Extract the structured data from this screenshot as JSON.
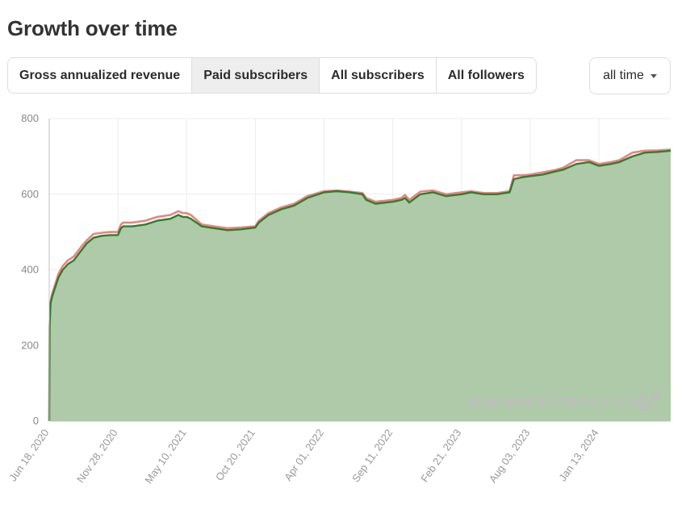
{
  "header": {
    "title": "Growth over time"
  },
  "tabs": [
    {
      "label": "Gross annualized revenue",
      "active": false
    },
    {
      "label": "Paid subscribers",
      "active": true
    },
    {
      "label": "All subscribers",
      "active": false
    },
    {
      "label": "All followers",
      "active": false
    }
  ],
  "range_select": {
    "value": "all time",
    "icon": "caret-down-icon"
  },
  "watermark": {
    "text": "WWW.WORCESTERSUCKS.EMAIL",
    "icon": "external-link-icon"
  },
  "colors": {
    "fill": "#aecaa8",
    "line": "#2e7d32",
    "secondary_line": "#e5877a",
    "grid": "#ececec"
  },
  "chart_data": {
    "type": "area",
    "title": "",
    "xlabel": "",
    "ylabel": "",
    "ylim": [
      0,
      800
    ],
    "yticks": [
      "0",
      "200",
      "400",
      "600",
      "800"
    ],
    "xticks": [
      "Jun 18, 2020",
      "Nov 28, 2020",
      "May 10, 2021",
      "Oct 20, 2021",
      "Apr 01, 2022",
      "Sep 11, 2022",
      "Feb 21, 2023",
      "Aug 03, 2023",
      "Jan 13, 2024"
    ],
    "grid": true,
    "x": [
      "2020-06-18",
      "2020-06-19",
      "2020-06-21",
      "2020-06-25",
      "2020-07-01",
      "2020-07-10",
      "2020-07-20",
      "2020-08-01",
      "2020-08-15",
      "2020-09-01",
      "2020-09-15",
      "2020-10-01",
      "2020-10-20",
      "2020-11-10",
      "2020-11-28",
      "2020-12-05",
      "2020-12-10",
      "2021-01-01",
      "2021-02-01",
      "2021-03-01",
      "2021-04-01",
      "2021-04-20",
      "2021-05-01",
      "2021-05-10",
      "2021-05-20",
      "2021-06-15",
      "2021-07-15",
      "2021-08-15",
      "2021-09-15",
      "2021-10-20",
      "2021-10-28",
      "2021-11-20",
      "2021-12-20",
      "2022-01-20",
      "2022-02-20",
      "2022-04-01",
      "2022-05-01",
      "2022-06-01",
      "2022-07-01",
      "2022-07-10",
      "2022-08-01",
      "2022-09-11",
      "2022-10-01",
      "2022-10-10",
      "2022-10-20",
      "2022-11-15",
      "2022-12-15",
      "2023-01-15",
      "2023-02-21",
      "2023-03-15",
      "2023-04-15",
      "2023-05-15",
      "2023-06-15",
      "2023-06-25",
      "2023-07-15",
      "2023-08-03",
      "2023-09-01",
      "2023-10-01",
      "2023-10-20",
      "2023-11-20",
      "2023-12-20",
      "2024-01-13",
      "2024-02-10",
      "2024-03-01",
      "2024-04-01",
      "2024-05-01",
      "2024-06-01",
      "2024-07-01"
    ],
    "series": [
      {
        "values": [
          0,
          250,
          310,
          330,
          350,
          380,
          400,
          415,
          425,
          450,
          470,
          485,
          490,
          492,
          492,
          510,
          515,
          515,
          520,
          530,
          535,
          545,
          540,
          540,
          535,
          515,
          510,
          505,
          507,
          512,
          525,
          545,
          560,
          570,
          590,
          605,
          608,
          605,
          600,
          585,
          575,
          580,
          585,
          590,
          578,
          600,
          605,
          595,
          600,
          605,
          600,
          600,
          605,
          640,
          645,
          648,
          652,
          660,
          665,
          680,
          685,
          675,
          680,
          685,
          700,
          710,
          712,
          715
        ]
      },
      {
        "values": [
          0,
          255,
          315,
          338,
          358,
          390,
          410,
          425,
          435,
          460,
          478,
          495,
          498,
          500,
          500,
          520,
          525,
          525,
          530,
          540,
          545,
          555,
          550,
          550,
          545,
          520,
          515,
          510,
          512,
          515,
          530,
          550,
          565,
          575,
          595,
          608,
          610,
          607,
          603,
          590,
          580,
          585,
          590,
          598,
          585,
          607,
          610,
          600,
          605,
          608,
          603,
          603,
          608,
          650,
          650,
          652,
          658,
          664,
          670,
          690,
          690,
          680,
          685,
          690,
          710,
          715,
          716,
          718
        ]
      }
    ]
  }
}
